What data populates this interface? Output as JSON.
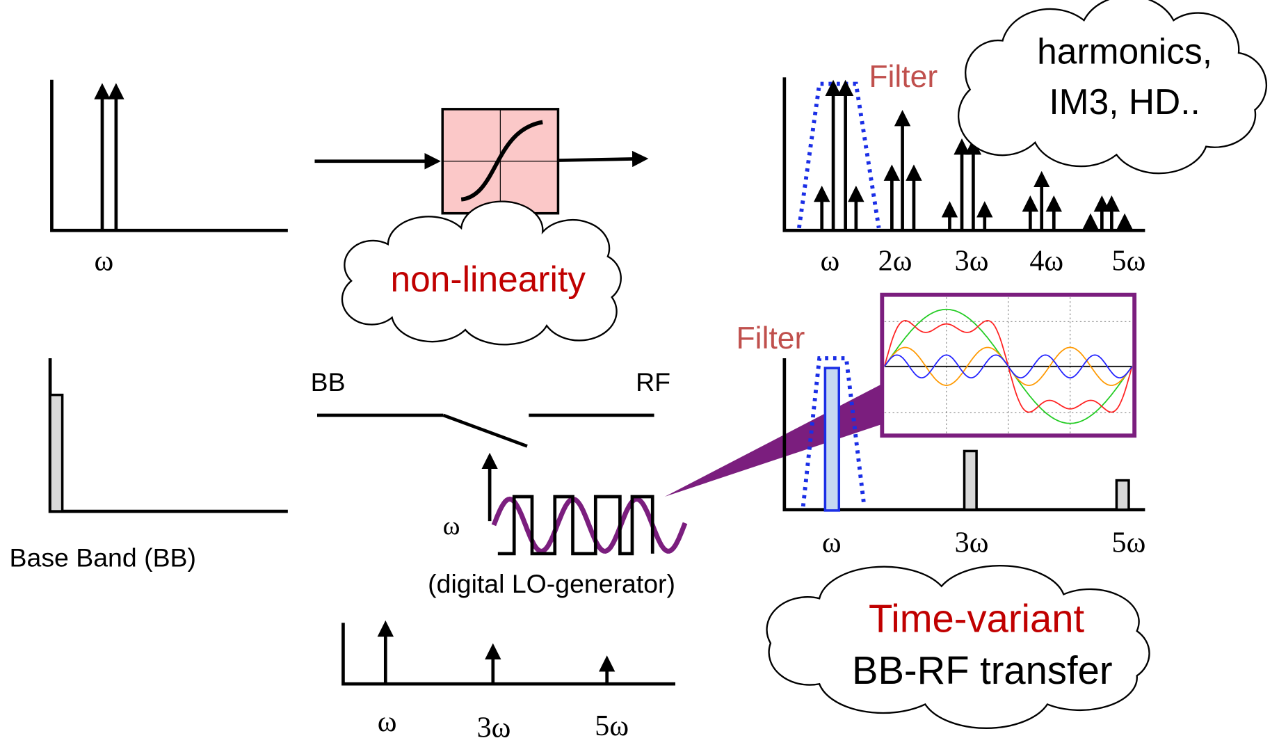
{
  "top": {
    "input_label": "ω",
    "block_label": "non-linearity",
    "filter_label": "Filter",
    "cloud_lines": [
      "harmonics,",
      "IM3, HD.."
    ],
    "output_labels": [
      "ω",
      "2ω",
      "3ω",
      "4ω",
      "5ω"
    ]
  },
  "bottom": {
    "input_label": "Base Band (BB)",
    "switch_left": "BB",
    "switch_right": "RF",
    "lo_label": "ω",
    "lo_caption": "(digital LO-generator)",
    "lo_spectrum_labels": [
      "ω",
      "3ω",
      "5ω"
    ],
    "filter_label": "Filter",
    "output_labels": [
      "ω",
      "3ω",
      "5ω"
    ],
    "cloud_title": "Time-variant",
    "cloud_text": "BB-RF transfer"
  }
}
